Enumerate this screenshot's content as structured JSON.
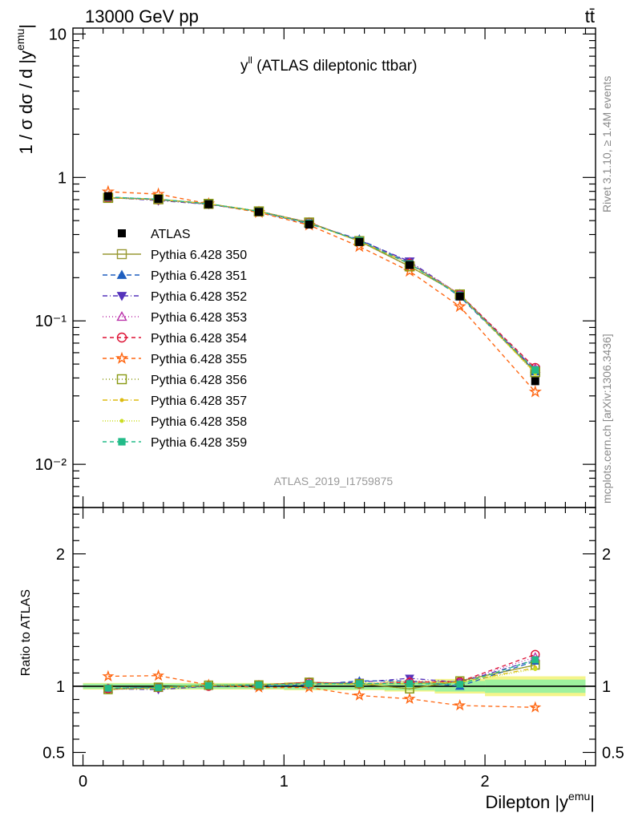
{
  "header": {
    "energy_label": "13000 GeV pp",
    "process_label": "tt̄"
  },
  "side_text": {
    "rivet": "Rivet 3.1.10, ≥ 1.4M events",
    "source": "mcplots.cern.ch [arXiv:1306.3436]"
  },
  "chart_data": [
    {
      "type": "line",
      "panel": "main",
      "title": "y^ll (ATLAS dileptonic ttbar)",
      "title_main": "y",
      "title_sup": "ll",
      "title_rest": " (ATLAS dileptonic ttbar)",
      "analysis_label": "ATLAS_2019_I1759875",
      "ylabel": "1 / σ  dσ / d |y^emu|",
      "ylabel_main": "1 / σ  dσ / d |y",
      "ylabel_sup": "emu",
      "ylabel_end": "|",
      "yscale": "log",
      "ylim": [
        0.005,
        11
      ],
      "xlim": [
        -0.05,
        2.55
      ],
      "yticks": [
        "10",
        "1",
        "10⁻¹",
        "10⁻²"
      ],
      "legend_position": "left-middle",
      "x": [
        0.125,
        0.375,
        0.625,
        0.875,
        1.125,
        1.375,
        1.625,
        1.875,
        2.25
      ],
      "data": {
        "name": "ATLAS",
        "values": [
          0.74,
          0.71,
          0.65,
          0.575,
          0.47,
          0.355,
          0.245,
          0.148,
          0.038
        ]
      },
      "series": [
        {
          "name": "Pythia 6.428 350",
          "color": "#999933",
          "marker": "square-open",
          "dash": "solid",
          "values": [
            0.72,
            0.705,
            0.655,
            0.58,
            0.485,
            0.36,
            0.24,
            0.153,
            0.044
          ]
        },
        {
          "name": "Pythia 6.428 351",
          "color": "#1f5fbf",
          "marker": "triangle-up",
          "dash": "6,4",
          "values": [
            0.73,
            0.7,
            0.65,
            0.575,
            0.475,
            0.37,
            0.255,
            0.148,
            0.0445
          ]
        },
        {
          "name": "Pythia 6.428 352",
          "color": "#5533bb",
          "marker": "triangle-down",
          "dash": "6,3,1,3",
          "values": [
            0.725,
            0.69,
            0.65,
            0.58,
            0.48,
            0.365,
            0.26,
            0.152,
            0.0455
          ]
        },
        {
          "name": "Pythia 6.428 353",
          "color": "#bb33aa",
          "marker": "triangle-up-open",
          "dash": "1,3",
          "values": [
            0.725,
            0.7,
            0.655,
            0.58,
            0.485,
            0.36,
            0.255,
            0.153,
            0.0465
          ]
        },
        {
          "name": "Pythia 6.428 354",
          "color": "#dd1133",
          "marker": "circle-open",
          "dash": "5,4",
          "values": [
            0.725,
            0.7,
            0.655,
            0.58,
            0.485,
            0.36,
            0.25,
            0.153,
            0.047
          ]
        },
        {
          "name": "Pythia 6.428 355",
          "color": "#ff6611",
          "marker": "star-open",
          "dash": "5,4",
          "values": [
            0.795,
            0.765,
            0.655,
            0.57,
            0.465,
            0.33,
            0.222,
            0.126,
            0.032
          ]
        },
        {
          "name": "Pythia 6.428 356",
          "color": "#889911",
          "marker": "square-open",
          "dash": "1,3",
          "values": [
            0.72,
            0.705,
            0.655,
            0.58,
            0.485,
            0.36,
            0.24,
            0.153,
            0.044
          ]
        },
        {
          "name": "Pythia 6.428 357",
          "color": "#ddbb11",
          "marker": "small-dot",
          "dash": "6,3,1,3",
          "values": [
            0.725,
            0.7,
            0.655,
            0.58,
            0.48,
            0.36,
            0.25,
            0.152,
            0.0435
          ]
        },
        {
          "name": "Pythia 6.428 358",
          "color": "#ccdd22",
          "marker": "small-dot",
          "dash": "1,2",
          "values": [
            0.725,
            0.7,
            0.655,
            0.58,
            0.48,
            0.36,
            0.25,
            0.152,
            0.043
          ]
        },
        {
          "name": "Pythia 6.428 359",
          "color": "#22bb88",
          "marker": "square-filled",
          "dash": "5,4",
          "values": [
            0.73,
            0.705,
            0.655,
            0.58,
            0.48,
            0.362,
            0.25,
            0.15,
            0.0455
          ]
        }
      ]
    },
    {
      "type": "line",
      "panel": "ratio",
      "ylabel": "Ratio to ATLAS",
      "xlabel": "Dilepton |y^emu|",
      "xlabel_main": "Dilepton |y",
      "xlabel_sup": "emu",
      "xlabel_end": "|",
      "ylim": [
        0.4,
        2.35
      ],
      "xlim": [
        -0.05,
        2.55
      ],
      "xticks": [
        "0",
        "1",
        "2"
      ],
      "yticks": [
        "0.5",
        "1",
        "2"
      ],
      "band_edges": [
        0,
        0.25,
        0.5,
        0.75,
        1.0,
        1.25,
        1.5,
        1.75,
        2.0,
        2.5
      ],
      "band_inner": [
        0.02,
        0.02,
        0.02,
        0.02,
        0.025,
        0.025,
        0.03,
        0.04,
        0.05
      ],
      "band_outer": [
        0.025,
        0.025,
        0.025,
        0.025,
        0.03,
        0.03,
        0.04,
        0.055,
        0.075
      ],
      "ratios": [
        [
          0.975,
          0.993,
          1.008,
          1.01,
          1.03,
          1.02,
          0.98,
          1.04,
          1.16
        ],
        [
          0.985,
          0.99,
          1.0,
          1.0,
          1.01,
          1.04,
          1.04,
          1.0,
          1.19
        ],
        [
          0.98,
          0.975,
          1.0,
          1.01,
          1.02,
          1.03,
          1.06,
          1.03,
          1.2
        ],
        [
          0.98,
          0.985,
          1.005,
          1.01,
          1.03,
          1.015,
          1.04,
          1.035,
          1.22
        ],
        [
          0.98,
          0.99,
          1.0,
          1.01,
          1.03,
          1.015,
          1.03,
          1.035,
          1.24
        ],
        [
          1.075,
          1.08,
          1.01,
          0.99,
          0.99,
          0.93,
          0.905,
          0.855,
          0.84
        ],
        [
          0.975,
          0.993,
          1.008,
          1.01,
          1.03,
          1.02,
          0.98,
          1.04,
          1.16
        ],
        [
          0.98,
          0.985,
          1.005,
          1.01,
          1.02,
          1.015,
          1.02,
          1.03,
          1.14
        ],
        [
          0.98,
          0.985,
          1.005,
          1.01,
          1.02,
          1.015,
          1.02,
          1.03,
          1.13
        ],
        [
          0.985,
          0.99,
          1.005,
          1.01,
          1.02,
          1.02,
          1.02,
          1.015,
          1.2
        ]
      ]
    }
  ]
}
